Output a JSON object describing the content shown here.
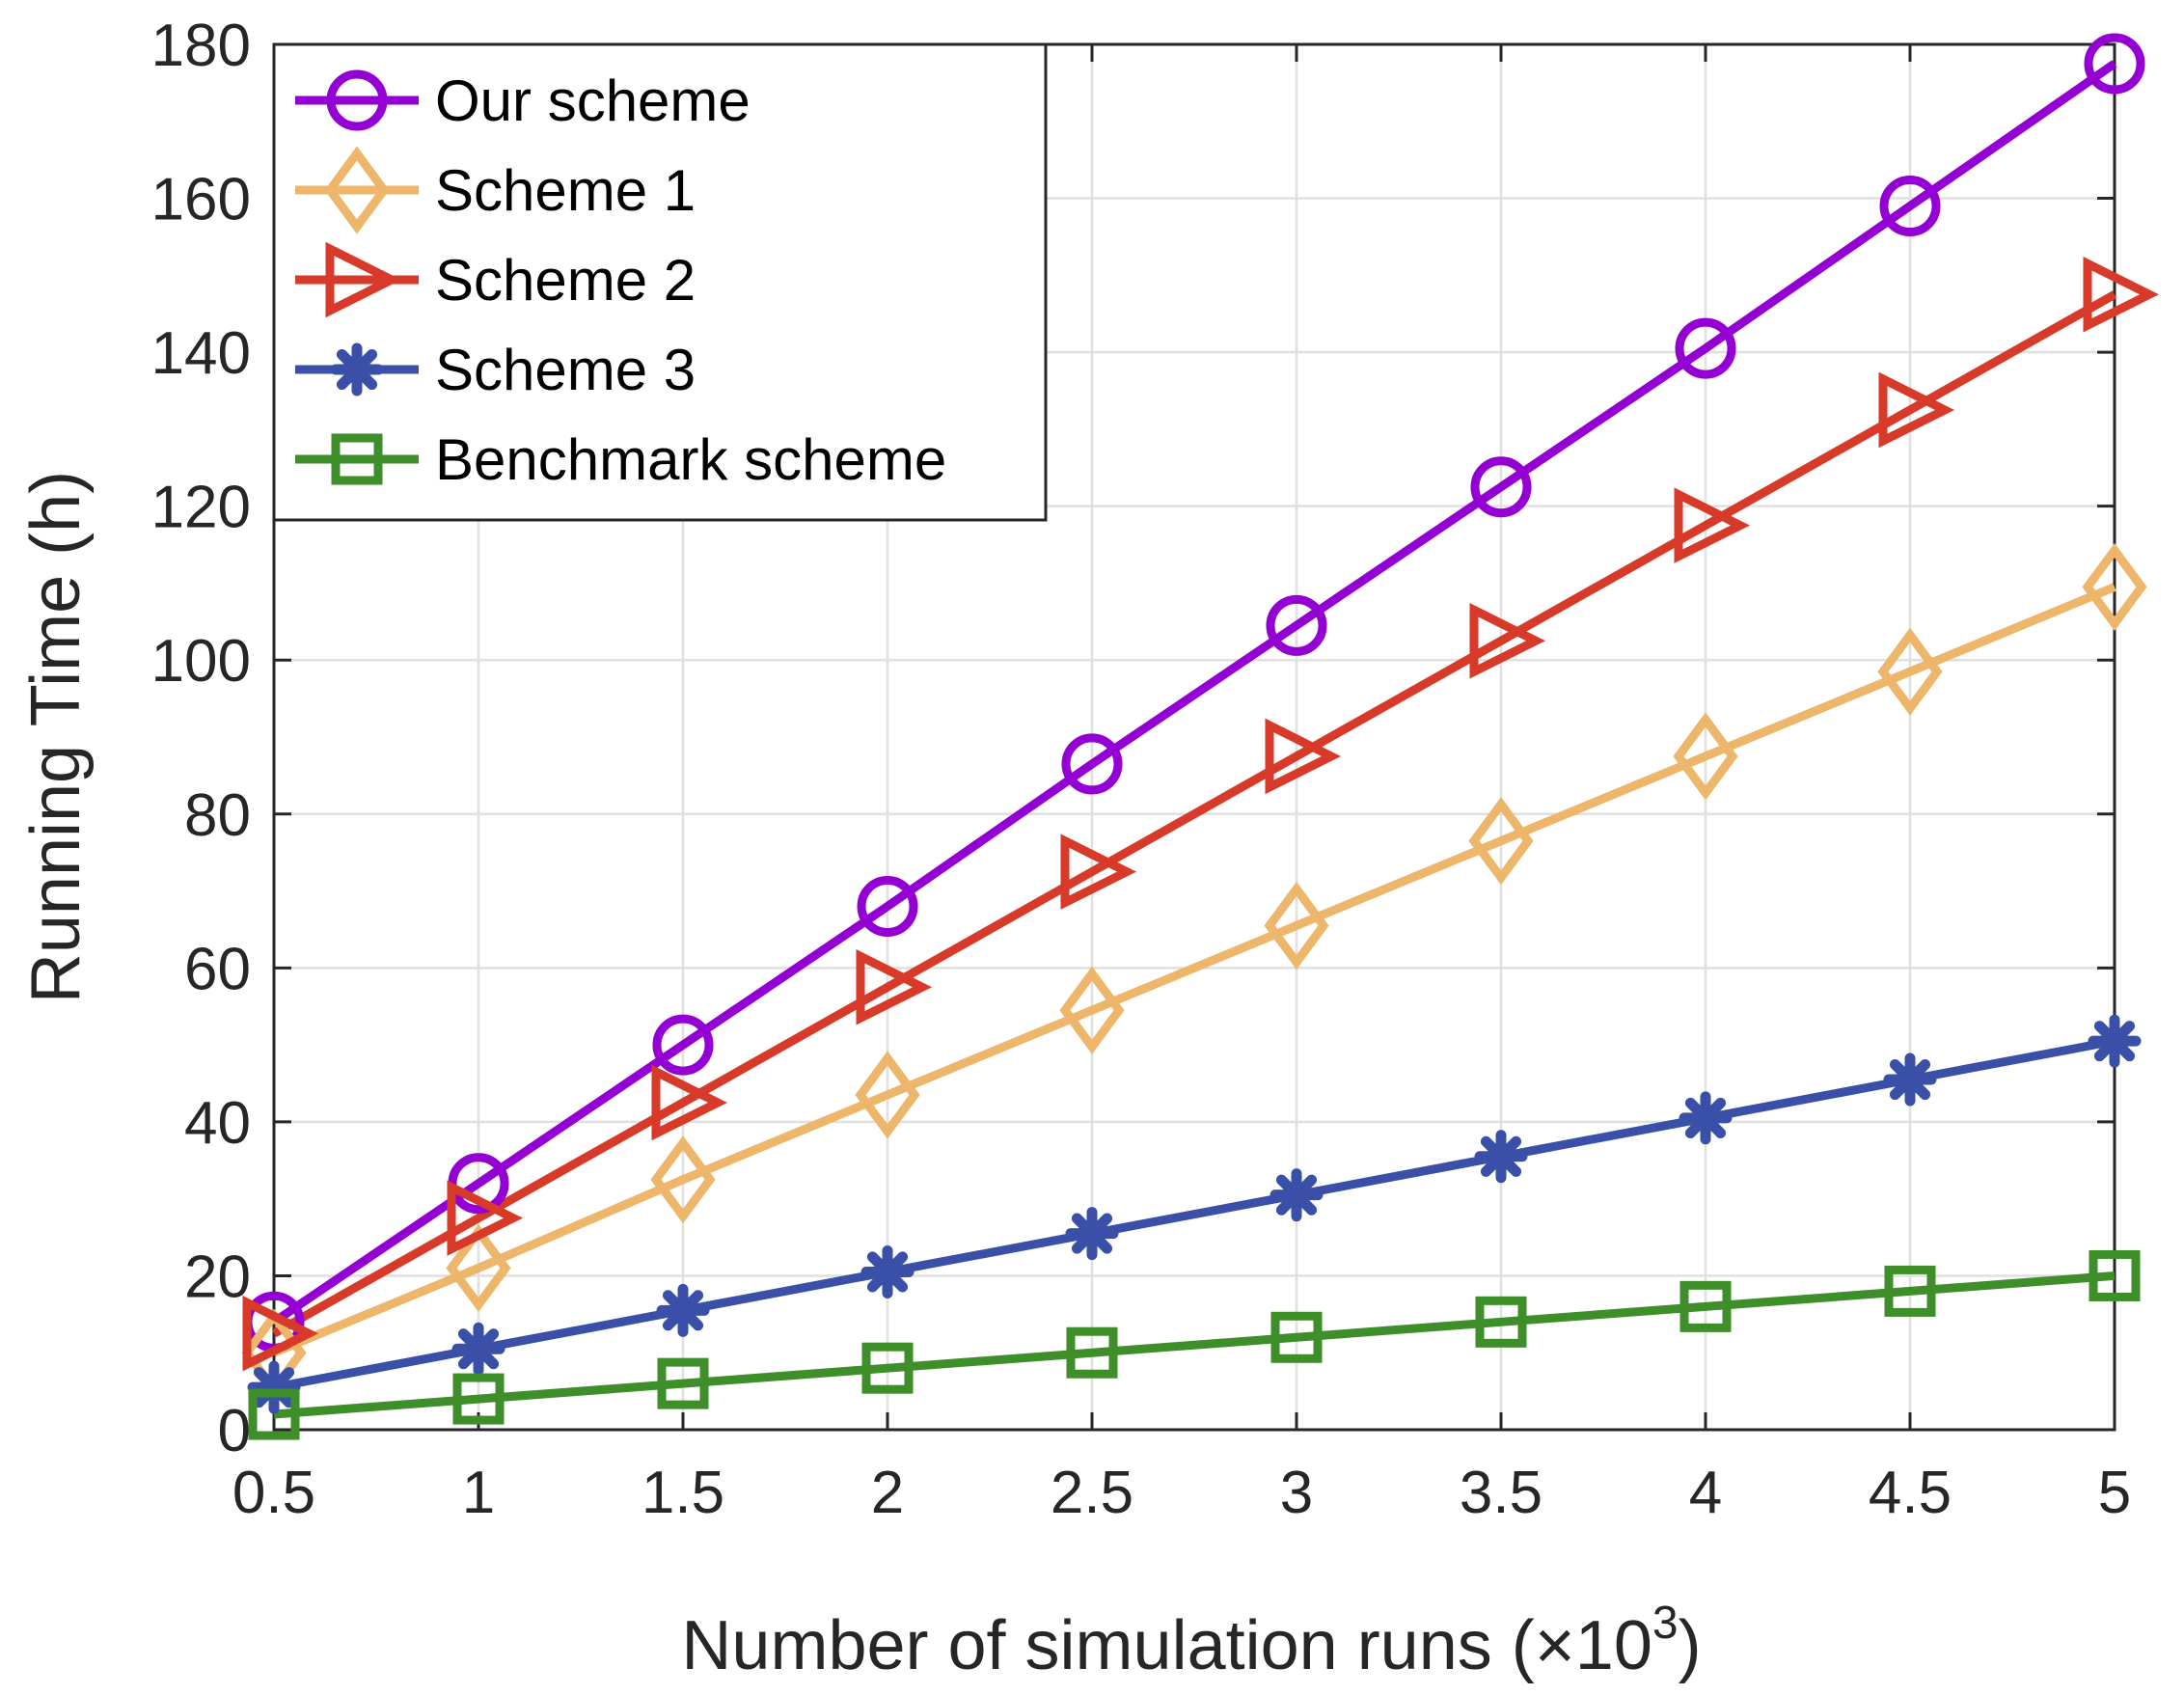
{
  "chart_data": {
    "type": "line",
    "title": "",
    "xlabel": "Number of simulation runs (×10",
    "xlabel_exponent": "3",
    "xlabel_close": ")",
    "ylabel": "Running Time (h)",
    "x": [
      0.5,
      1,
      1.5,
      2,
      2.5,
      3,
      3.5,
      4,
      4.5,
      5
    ],
    "x_tick_labels": [
      "0.5",
      "1",
      "1.5",
      "2",
      "2.5",
      "3",
      "3.5",
      "4",
      "4.5",
      "5"
    ],
    "xlim": [
      0.5,
      5
    ],
    "ylim": [
      0,
      180
    ],
    "y_ticks": [
      0,
      20,
      40,
      60,
      80,
      100,
      120,
      140,
      160,
      180
    ],
    "y_tick_labels": [
      "0",
      "20",
      "40",
      "60",
      "80",
      "100",
      "120",
      "140",
      "160",
      "180"
    ],
    "grid": true,
    "legend_position": "top-left",
    "series": [
      {
        "name": "Our scheme",
        "marker": "circle",
        "color": "#9400D3",
        "values": [
          14,
          32,
          50,
          68,
          86.5,
          104.5,
          122.5,
          140.5,
          159,
          177.5
        ]
      },
      {
        "name": "Scheme 1",
        "marker": "diamond",
        "color": "#EDB66A",
        "values": [
          10,
          21,
          32.5,
          43.5,
          54.5,
          65.5,
          76.5,
          87.5,
          98.5,
          109.5
        ]
      },
      {
        "name": "Scheme 2",
        "marker": "triangle-right",
        "color": "#D83A2A",
        "values": [
          12.5,
          27.5,
          42.5,
          57.5,
          72.5,
          87.5,
          102.5,
          117.5,
          132.5,
          147.5
        ]
      },
      {
        "name": "Scheme 3",
        "marker": "star",
        "color": "#3A50A8",
        "values": [
          5.5,
          10.5,
          15.5,
          20.5,
          25.5,
          30.5,
          35.5,
          40.5,
          45.5,
          50.5
        ]
      },
      {
        "name": "Benchmark scheme",
        "marker": "square",
        "color": "#3E8E2A",
        "values": [
          2,
          4,
          6,
          8,
          10,
          12,
          14,
          16,
          18,
          20
        ]
      }
    ]
  }
}
